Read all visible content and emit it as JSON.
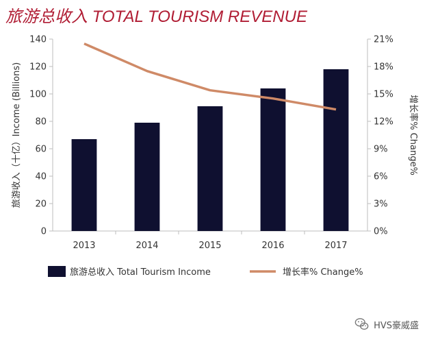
{
  "chart_data": {
    "type": "bar+line",
    "title": "旅游总收入 TOTAL TOURISM REVENUE",
    "categories": [
      "2013",
      "2014",
      "2015",
      "2016",
      "2017"
    ],
    "series": [
      {
        "name": "旅游总收入 Total Tourism Income",
        "type": "bar",
        "axis": "left",
        "values": [
          67,
          79,
          91,
          104,
          118
        ],
        "color": "#0f1030"
      },
      {
        "name": "增长率% Change%",
        "type": "line",
        "axis": "right",
        "values": [
          20.5,
          17.5,
          15.4,
          14.5,
          13.3
        ],
        "color": "#cf8a67"
      }
    ],
    "ylabel_left": "旅游收入（十亿）Income (Billions)",
    "ylabel_right": "增长率% Change%",
    "ylim_left": [
      0,
      140
    ],
    "yticks_left": [
      "0",
      "20",
      "40",
      "60",
      "80",
      "100",
      "120",
      "140"
    ],
    "ylim_right": [
      0,
      21
    ],
    "yticks_right": [
      "0%",
      "3%",
      "6%",
      "9%",
      "12%",
      "15%",
      "18%",
      "21%"
    ],
    "legend_position": "bottom",
    "grid": false
  },
  "watermark": {
    "text": "HVS豪威盛",
    "icon": "wechat-icon"
  }
}
